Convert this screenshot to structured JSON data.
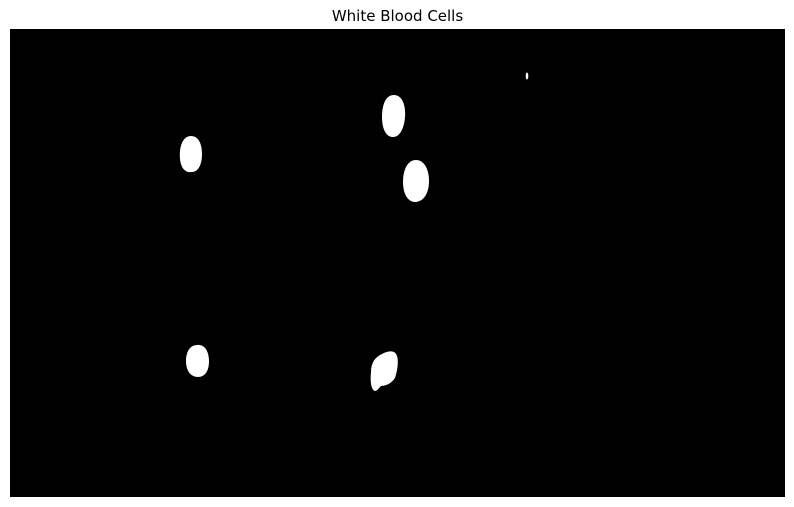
{
  "figure": {
    "title": "White Blood Cells"
  },
  "image": {
    "description_kind": "binary segmentation mask",
    "background_color": "#000000",
    "foreground_color": "#ffffff"
  }
}
